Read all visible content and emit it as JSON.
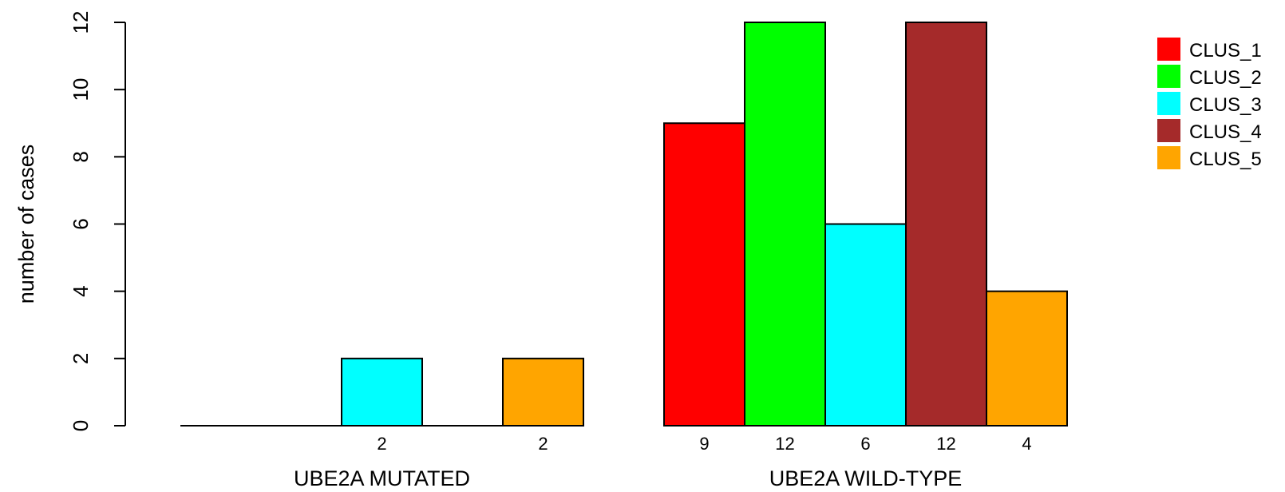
{
  "chart_data": {
    "type": "bar",
    "ylabel": "number of cases",
    "ylim": [
      0,
      12
    ],
    "yticks": [
      0,
      2,
      4,
      6,
      8,
      10,
      12
    ],
    "groups": [
      "UBE2A MUTATED",
      "UBE2A WILD-TYPE"
    ],
    "series": [
      {
        "name": "CLUS_1",
        "color": "#FF0000",
        "values": [
          0,
          9
        ]
      },
      {
        "name": "CLUS_2",
        "color": "#00FF00",
        "values": [
          0,
          12
        ]
      },
      {
        "name": "CLUS_3",
        "color": "#00FFFF",
        "values": [
          2,
          6
        ]
      },
      {
        "name": "CLUS_4",
        "color": "#A52A2A",
        "values": [
          0,
          12
        ]
      },
      {
        "name": "CLUS_5",
        "color": "#FFA500",
        "values": [
          2,
          4
        ]
      }
    ],
    "count_labels": [
      [
        "",
        "",
        "2",
        "",
        "2"
      ],
      [
        "9",
        "12",
        "6",
        "12",
        "4"
      ]
    ],
    "legend_position": "top-right",
    "grid": false
  }
}
